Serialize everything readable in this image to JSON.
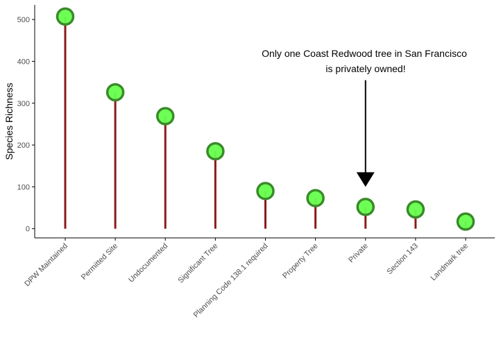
{
  "chart_data": {
    "type": "lollipop",
    "title": "",
    "xlabel": "",
    "ylabel": "Species Richness",
    "categories": [
      "DPW Maintained",
      "Permitted Site",
      "Undocumented",
      "Significant Tree",
      "Planning Code 138.1 required",
      "Property Tree",
      "Private",
      "Section 143",
      "Landmark tree"
    ],
    "values": [
      507,
      326,
      269,
      185,
      90,
      73,
      52,
      46,
      17
    ],
    "ylim": [
      -22,
      535
    ],
    "yticks": [
      0,
      100,
      200,
      300,
      400,
      500
    ],
    "grid": false,
    "colors": {
      "stem": "#8b1a1a",
      "point_fill": "#66ff4d",
      "point_stroke": "#3a8a2a",
      "axis": "#000000"
    },
    "annotation": {
      "lines": [
        "Only one Coast Redwood tree in San Francisco",
        "is privately owned!"
      ],
      "target_category": "Private",
      "arrow_from_value": 355,
      "arrow_to_value": 100
    }
  }
}
